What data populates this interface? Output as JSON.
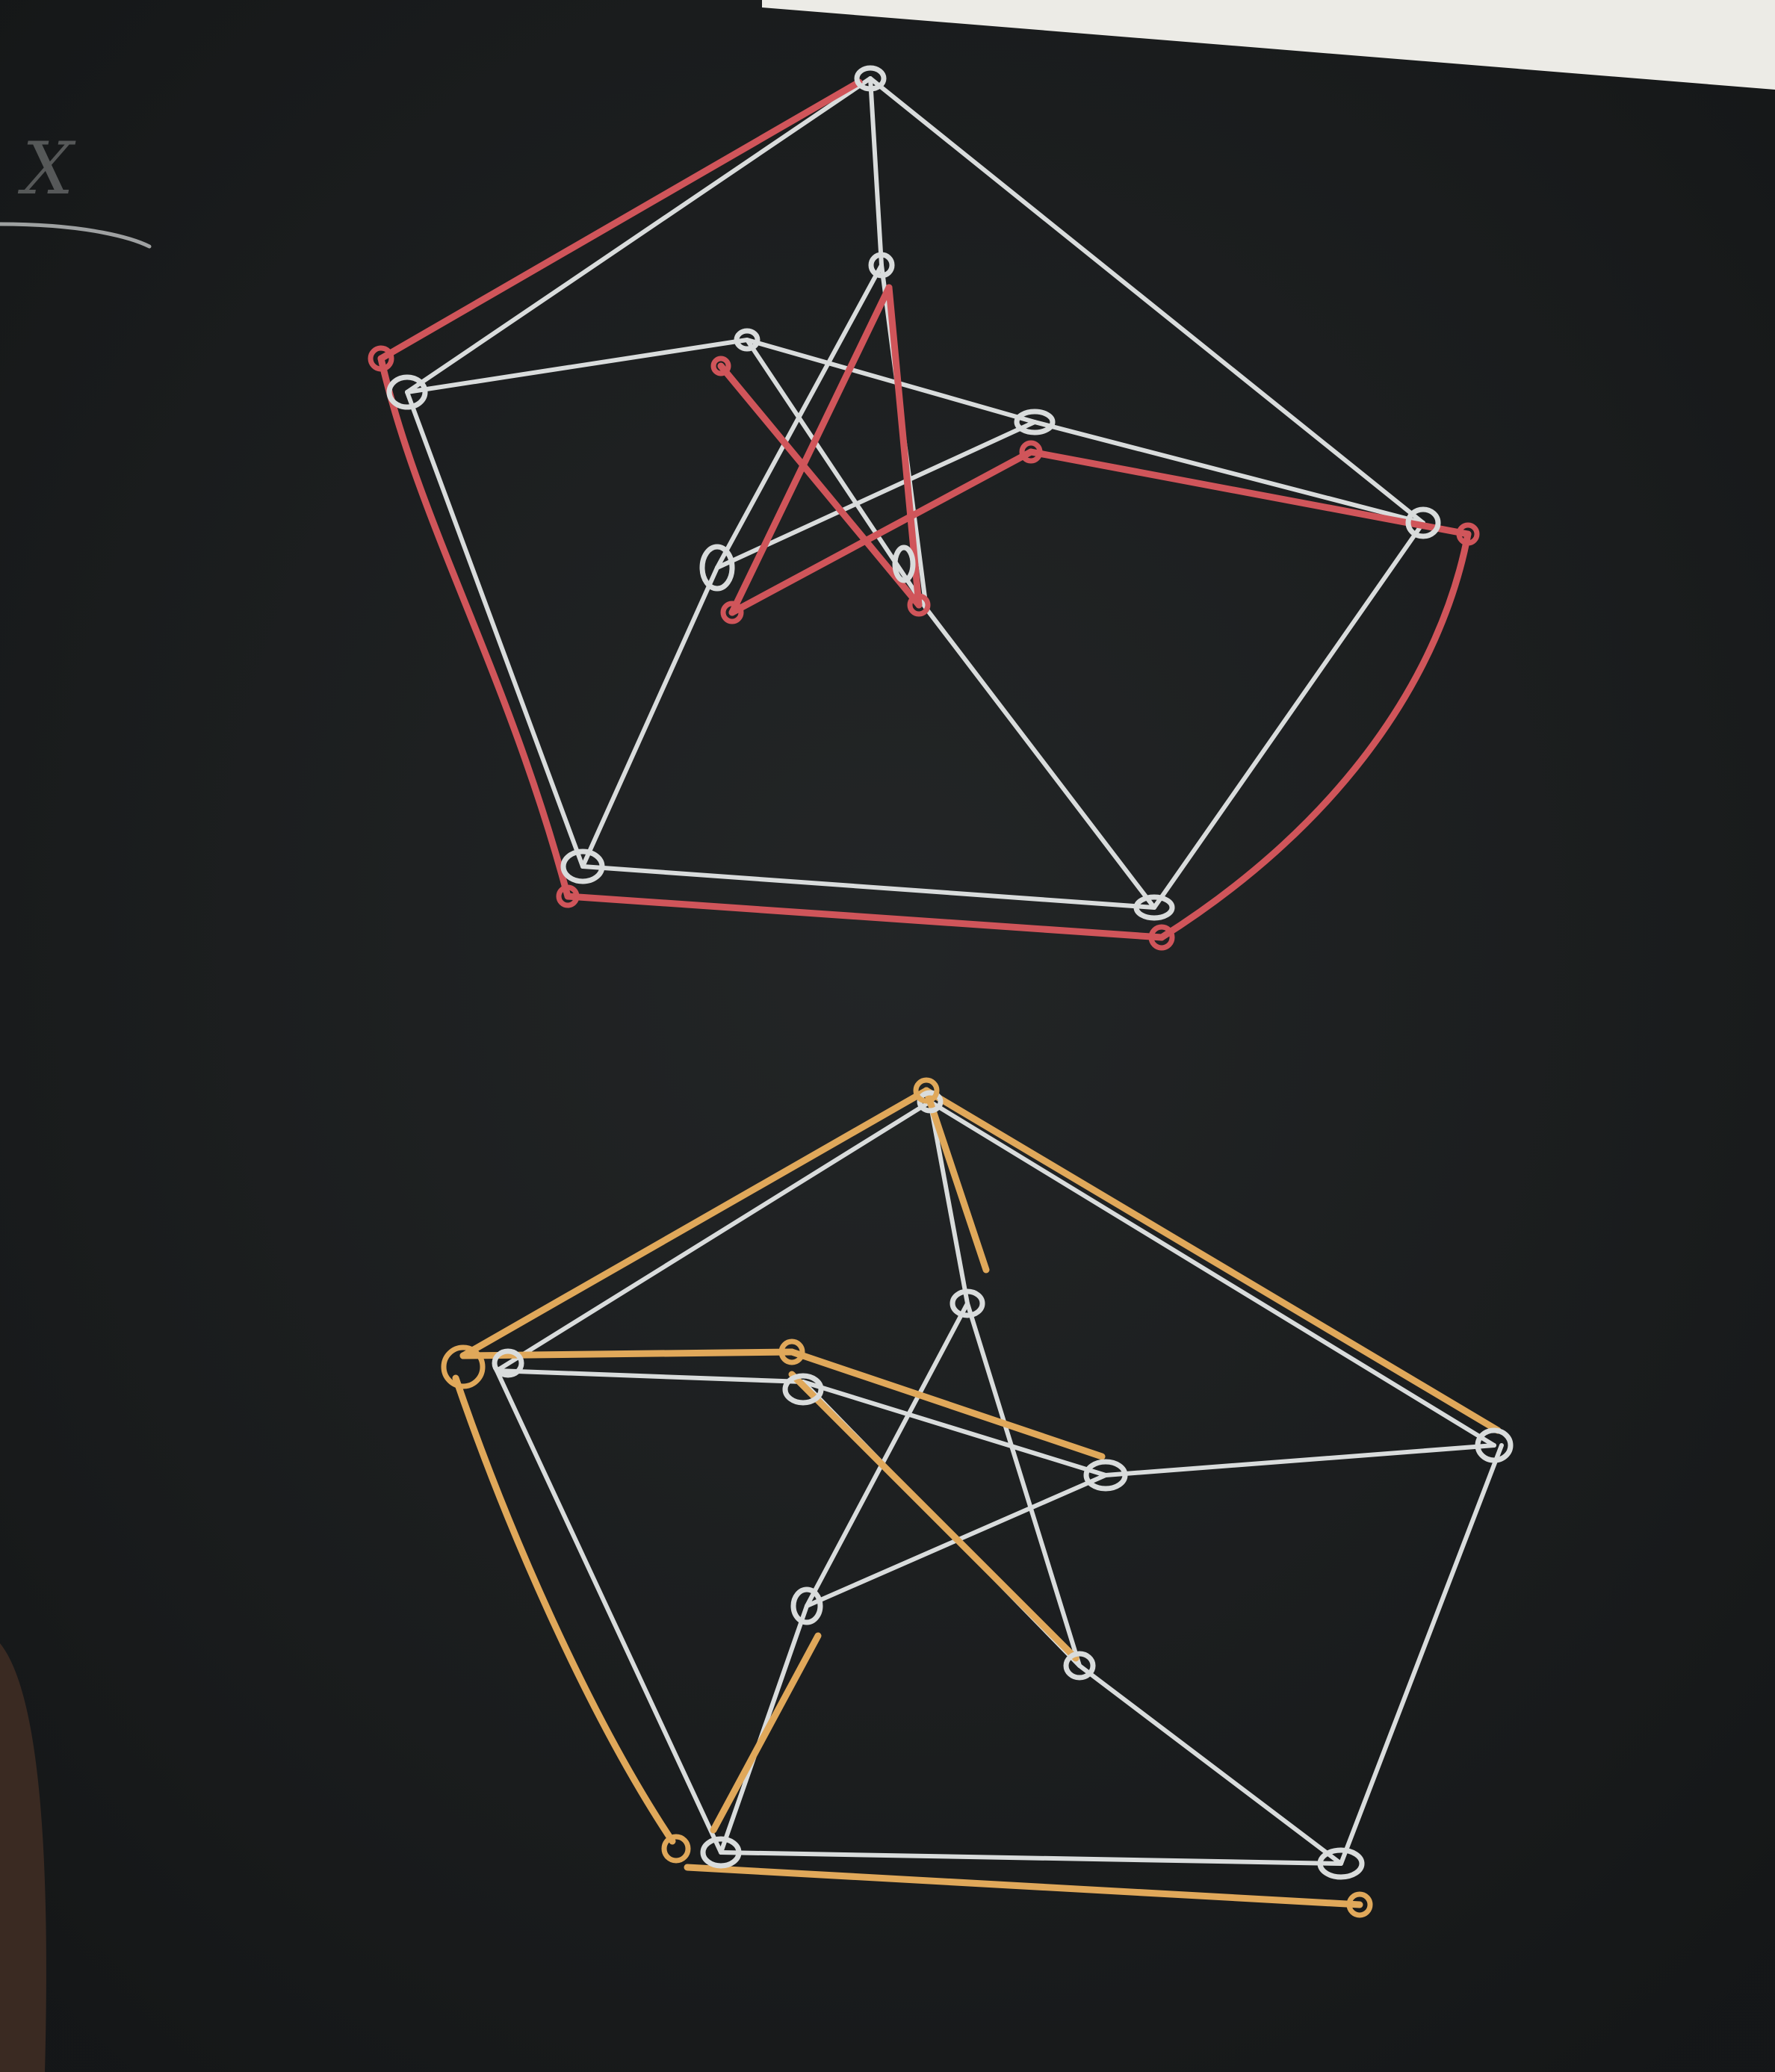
{
  "board_caption": "X",
  "colors": {
    "board": "#1a1c1d",
    "white_chalk": "#d9dcdc",
    "red_chalk": "#d0555a",
    "orange_chalk": "#e0a85a"
  },
  "drawings": [
    "petersen-graph-red-cycle",
    "petersen-graph-orange-cycle"
  ]
}
